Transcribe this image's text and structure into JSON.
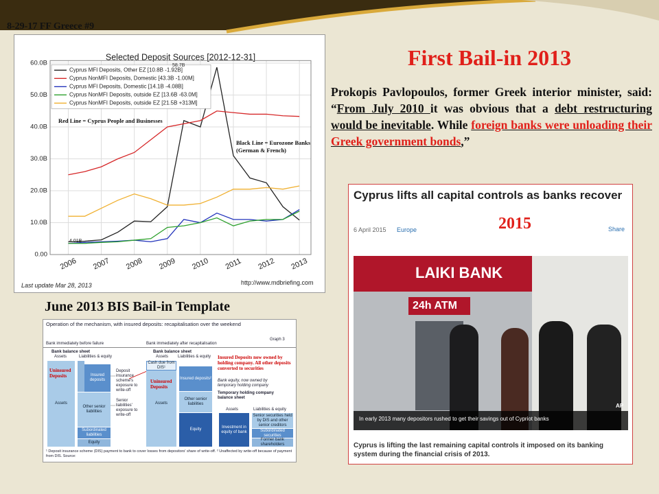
{
  "slide_label": "8-29-17 FF Greece #9",
  "title": "First Bail-in 2013",
  "quote": [
    {
      "text": "Prokopis Pavlopoulos, former Greek interior minister, said: “",
      "style": "plain"
    },
    {
      "text": "From July 2010 ",
      "style": "underline"
    },
    {
      "text": "it was obvious that a ",
      "style": "plain"
    },
    {
      "text": "debt restructuring would be inevitable",
      "style": "underline"
    },
    {
      "text": ". While ",
      "style": "plain"
    },
    {
      "text": "foreign banks were unloading their Greek government bonds",
      "style": "underline-red"
    },
    {
      "text": ",",
      "style": "underline"
    },
    {
      "text": "”",
      "style": "plain"
    }
  ],
  "chart_data": {
    "type": "line",
    "title": "Selected Deposit Sources  [2012-12-31]",
    "x": [
      2006,
      2006.5,
      2007,
      2007.5,
      2008,
      2008.5,
      2009,
      2009.5,
      2010,
      2010.5,
      2011,
      2011.5,
      2012,
      2012.5,
      2013
    ],
    "xlim": [
      2005.45,
      2013.35
    ],
    "xticks": [
      2006,
      2007,
      2008,
      2009,
      2010,
      2011,
      2012,
      2013
    ],
    "ylim": [
      0,
      60.8
    ],
    "yticks": [
      {
        "value": 0,
        "label": "0.00"
      },
      {
        "value": 10,
        "label": "10.0B"
      },
      {
        "value": 20,
        "label": "20.0B"
      },
      {
        "value": 30,
        "label": "30.0B"
      },
      {
        "value": 40,
        "label": "40.0B"
      },
      {
        "value": 50,
        "label": "50.0B"
      },
      {
        "value": 60,
        "label": "60.0B"
      }
    ],
    "grid": true,
    "series": [
      {
        "name": "Cyprus MFI Deposits, Other EZ [10.8B -1.92B]",
        "color": "#222222",
        "values": [
          4.01,
          4.2,
          4.6,
          7,
          10.5,
          10.3,
          15,
          42,
          40,
          58.7,
          31,
          24,
          22.5,
          15,
          10.8
        ]
      },
      {
        "name": "Cyprus NonMFI Deposits, Domestic [43.3B -1.00M]",
        "color": "#d62728",
        "values": [
          25,
          26,
          27.5,
          30,
          32,
          36,
          40,
          41,
          42,
          45,
          44.5,
          44,
          44,
          43.5,
          43.3
        ]
      },
      {
        "name": "Cyprus MFI Deposits, Domestic [14.1B -4.08B]",
        "color": "#2233bb",
        "values": [
          3.5,
          3.8,
          4,
          4.2,
          4.5,
          4,
          5,
          11,
          10,
          13,
          11,
          11,
          10.5,
          11,
          14.1
        ]
      },
      {
        "name": "Cyprus NonMFI Deposits, outside EZ [13.6B -63.0M]",
        "color": "#2ca02c",
        "values": [
          3.5,
          3.5,
          3.8,
          4,
          4.5,
          5,
          8.5,
          9,
          10,
          11.5,
          9,
          10.5,
          11,
          11,
          13.6
        ]
      },
      {
        "name": "Cyprus NonMFI Deposits, outside EZ [21.5B +313M]",
        "color": "#f0b030",
        "values": [
          12,
          12,
          14.5,
          17,
          19,
          17.5,
          15.5,
          15.5,
          16,
          18,
          20.5,
          20.5,
          21,
          20.5,
          21.5
        ]
      }
    ],
    "annotations": [
      "58.7B",
      "4.01B",
      "Red Line = Cyprus People and Businesses",
      "Black Line = Eurozone Banks (German & French)"
    ],
    "notes": [
      "Last update Mar 28, 2013",
      "http://www.mdbriefing.com"
    ]
  },
  "template": {
    "title": "June 2013 BIS Bail-in Template",
    "heading": "Operation of the mechanism, with insured deposits: recapitalisation over the weekend",
    "graph": "Graph 3",
    "left": {
      "caption": "Bank immediately before failure",
      "balance_sheet": "Bank balance sheet",
      "assets_header": "Assets",
      "liabilities_header": "Liabilities & equity",
      "assets": "Assets",
      "insured_deposits": "Insured deposits",
      "other_senior": "Other senior liabilities",
      "subordinated": "Subordinated liabilities",
      "equity": "Equity",
      "uninsured_note": "Uninsured Deposits",
      "dis_note": "Deposit insurance scheme's exposure to write-off",
      "senior_note": "Senior liabilities' exposure to write-off"
    },
    "right": {
      "caption": "Bank immediately after recapitalisation",
      "balance_sheet": "Bank balance sheet",
      "assets_header": "Assets",
      "liabilities_header": "Liabilities & equity",
      "assets": "Assets",
      "cash_due": "Cash due from DIS¹",
      "insured_deposits": "Insured deposits²",
      "other_senior": "Other senior liabilities",
      "equity": "Equity",
      "uninsured_note": "Uninsured Deposits",
      "equity_note": "Bank equity, now owned by temporary holding company",
      "red_note": "Insured Deposits now owned by holding company. All other deposits converted to securities"
    },
    "holding": {
      "caption": "Temporary holding company balance sheet",
      "assets_header": "Assets",
      "liabilities_header": "Liabilities & equity",
      "investment": "Investment in equity of bank",
      "senior_securities": "Senior securities held by DIS and other senior creditors",
      "subordinated_securities": "Subordinated securities",
      "former_shareholders": "Former bank shareholders"
    },
    "footnote": "¹ Deposit insurance scheme (DIS) payment to bank to cover losses from depositors' share of write-off.   ² Unaffected by write-off because of payment from DIS.   Source:"
  },
  "news": {
    "headline": "Cyprus lifts all capital controls as banks recover",
    "date": "6 April 2015",
    "section": "Europe",
    "share": "Share",
    "year": "2015",
    "photo": {
      "sign": "LAIKI BANK",
      "atm": "24h ATM",
      "caption": "In early 2013 many depositors rushed to get their savings out of Cypriot banks",
      "credit": "AP"
    },
    "summary": "Cyprus is lifting the last remaining capital controls it imposed on its banking system during the financial crisis of 2013."
  }
}
